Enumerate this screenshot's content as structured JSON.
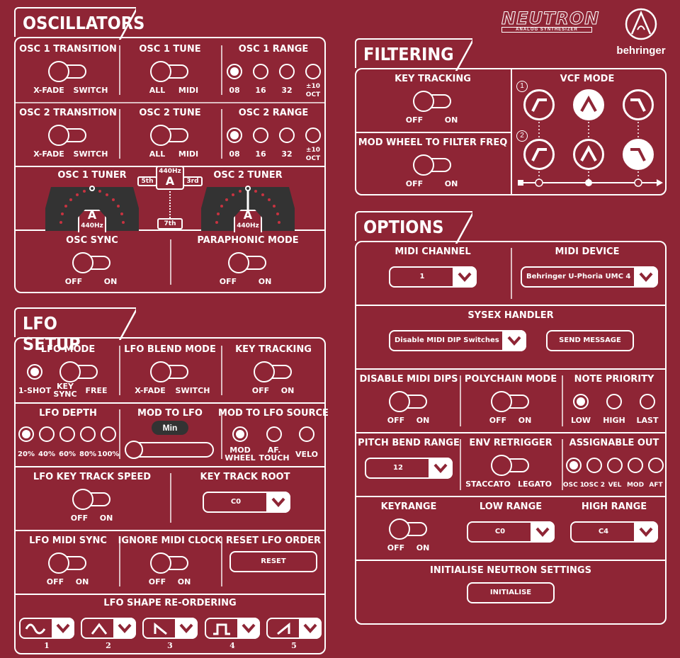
{
  "brand": {
    "neutron": "NEUTRON",
    "neutron_sub": "ANALOG SYNTHESIZER",
    "behringer": "behringer"
  },
  "osc": {
    "title": "OSCILLATORS",
    "osc1_transition": {
      "label": "OSC  1 TRANSITION",
      "off": "X-FADE",
      "on": "SWITCH"
    },
    "osc1_tune": {
      "label": "OSC  1 TUNE",
      "off": "ALL",
      "on": "MIDI"
    },
    "osc1_range": {
      "label": "OSC 1 RANGE",
      "opts": [
        "08",
        "16",
        "32",
        "±10"
      ],
      "oct": "OCT"
    },
    "osc2_transition": {
      "label": "OSC  2 TRANSITION",
      "off": "X-FADE",
      "on": "SWITCH"
    },
    "osc2_tune": {
      "label": "OSC  2 TUNE",
      "off": "ALL",
      "on": "MIDI"
    },
    "osc2_range": {
      "label": "OSC 2 RANGE",
      "opts": [
        "08",
        "16",
        "32",
        "±10"
      ],
      "oct": "OCT"
    },
    "tuner1": {
      "label": "OSC 1 TUNER",
      "note": "A",
      "freq": "440Hz"
    },
    "tuner2": {
      "label": "OSC 2 TUNER",
      "note": "A",
      "freq": "440Hz"
    },
    "center": {
      "freq": "440Hz",
      "note": "A",
      "fifth": "5th",
      "third": "3rd",
      "seventh": "7th"
    },
    "osc_sync": {
      "label": "OSC SYNC",
      "off": "OFF",
      "on": "ON"
    },
    "paraphonic": {
      "label": "PARAPHONIC MODE",
      "off": "OFF",
      "on": "ON"
    }
  },
  "lfo": {
    "title": "LFO SETUP",
    "mode": {
      "label": "LFO MODE",
      "oneshot": "1-SHOT",
      "keysync": "KEY\nSYNC",
      "free": "FREE"
    },
    "blend": {
      "label": "LFO BLEND MODE",
      "off": "X-FADE",
      "on": "SWITCH"
    },
    "keytrack": {
      "label": "KEY TRACKING",
      "off": "OFF",
      "on": "ON"
    },
    "depth": {
      "label": "LFO DEPTH",
      "opts": [
        "20%",
        "40%",
        "60%",
        "80%",
        "100%"
      ]
    },
    "mod_to_lfo": {
      "label": "MOD TO LFO",
      "min": "Min"
    },
    "mod_source": {
      "label": "MOD TO LFO SOURCE",
      "opts": [
        "MOD\nWHEEL",
        "AF.\nTOUCH",
        "VELO"
      ]
    },
    "key_track_speed": {
      "label": "LFO KEY TRACK SPEED",
      "off": "OFF",
      "on": "ON"
    },
    "key_track_root": {
      "label": "KEY TRACK ROOT",
      "value": "C0"
    },
    "midi_sync": {
      "label": "LFO MIDI SYNC",
      "off": "OFF",
      "on": "ON"
    },
    "ignore_clock": {
      "label": "IGNORE MIDI CLOCK",
      "off": "OFF",
      "on": "ON"
    },
    "reset_order": {
      "label": "RESET LFO ORDER",
      "button": "RESET"
    },
    "shape_reorder": {
      "label": "LFO SHAPE RE-ORDERING",
      "nums": [
        "1",
        "2",
        "3",
        "4",
        "5"
      ]
    }
  },
  "filter": {
    "title": "FILTERING",
    "key_tracking": {
      "label": "KEY TRACKING",
      "off": "OFF",
      "on": "ON"
    },
    "mod_wheel": {
      "label": "MOD WHEEL TO FILTER FREQ",
      "off": "OFF",
      "on": "ON"
    },
    "vcf": {
      "label": "VCF MODE",
      "n1": "1",
      "n2": "2"
    }
  },
  "options": {
    "title": "OPTIONS",
    "midi_channel": {
      "label": "MIDI CHANNEL",
      "value": "1"
    },
    "midi_device": {
      "label": "MIDI DEVICE",
      "value": "Behringer U-Phoria UMC 404"
    },
    "sysex": {
      "label": "SYSEX HANDLER",
      "value": "Disable MIDI DIP Switches",
      "button": "SEND MESSAGE"
    },
    "disable_dips": {
      "label": "DISABLE MIDI DIPS",
      "off": "OFF",
      "on": "ON"
    },
    "polychain": {
      "label": "POLYCHAIN MODE",
      "off": "OFF",
      "on": "ON"
    },
    "note_priority": {
      "label": "NOTE PRIORITY",
      "opts": [
        "LOW",
        "HIGH",
        "LAST"
      ]
    },
    "pitch_bend": {
      "label": "PITCH BEND RANGE",
      "value": "12"
    },
    "env_retrigger": {
      "label": "ENV RETRIGGER",
      "off": "STACCATO",
      "on": "LEGATO"
    },
    "assignable_out": {
      "label": "ASSIGNABLE OUT",
      "opts": [
        "OSC 1",
        "OSC 2",
        "VEL",
        "MOD",
        "AFT"
      ]
    },
    "keyrange": {
      "label": "KEYRANGE",
      "off": "OFF",
      "on": "ON"
    },
    "low_range": {
      "label": "LOW RANGE",
      "value": "C0"
    },
    "high_range": {
      "label": "HIGH RANGE",
      "value": "C4"
    },
    "init": {
      "label": "INITIALISE NEUTRON SETTINGS",
      "button": "INITIALISE"
    }
  }
}
